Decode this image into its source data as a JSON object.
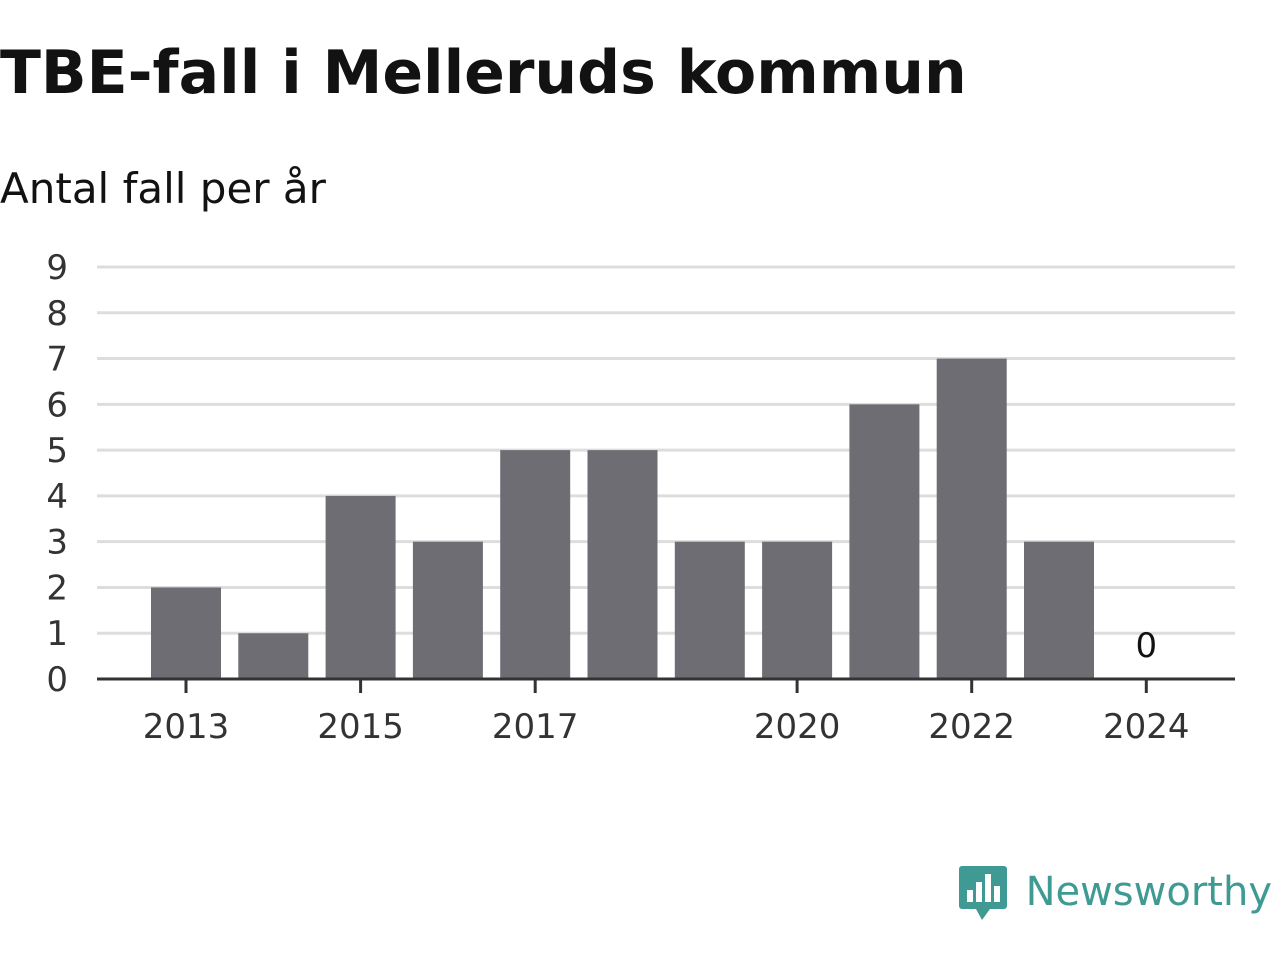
{
  "title": "TBE-fall i Melleruds kommun",
  "subtitle": "Antal fall per år",
  "brand": {
    "name": "Newsworthy",
    "color": "#3f9a93",
    "icon": "newsworthy-logo-icon"
  },
  "colors": {
    "bar": "#6e6d74",
    "grid": "#dddddd",
    "axis": "#333333"
  },
  "chart_data": {
    "type": "bar",
    "title": "TBE-fall i Melleruds kommun",
    "subtitle": "Antal fall per år",
    "categories": [
      "2013",
      "2014",
      "2015",
      "2016",
      "2017",
      "2018",
      "2019",
      "2020",
      "2021",
      "2022",
      "2023",
      "2024"
    ],
    "values": [
      2,
      1,
      4,
      3,
      5,
      5,
      3,
      3,
      6,
      7,
      3,
      0
    ],
    "x_tick_labels": [
      "2013",
      "2015",
      "2017",
      "2020",
      "2022",
      "2024"
    ],
    "y_ticks": [
      0,
      1,
      2,
      3,
      4,
      5,
      6,
      7,
      8,
      9
    ],
    "ylim": [
      0,
      9
    ],
    "xlabel": "",
    "ylabel": "",
    "grid": true,
    "legend": "none",
    "data_labels": [
      {
        "category": "2024",
        "text": "0"
      }
    ]
  }
}
